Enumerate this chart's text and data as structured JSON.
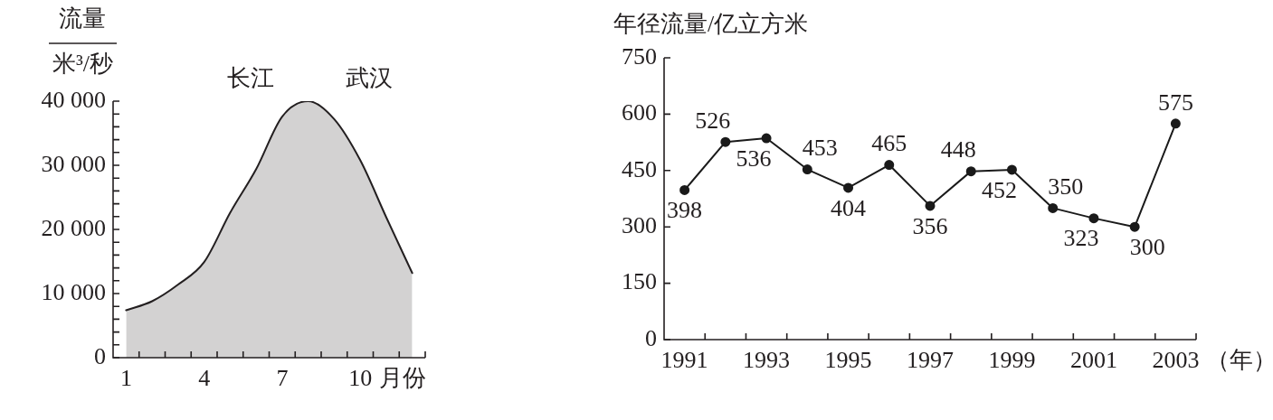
{
  "chart_data": [
    {
      "type": "area",
      "ylabel": "流量米³/秒",
      "xlabel": "月份",
      "annotations": [
        "长江",
        "武汉"
      ],
      "categories": [
        "1",
        null,
        null,
        "4",
        null,
        null,
        "7",
        null,
        null,
        "10",
        null,
        null
      ],
      "series": [
        {
          "color": "#231f20",
          "values": [
            7400,
            8800,
            11400,
            14900,
            22600,
            29400,
            37600,
            40000,
            37200,
            30800,
            21900,
            13200
          ]
        }
      ],
      "ylim": [
        0,
        40000
      ],
      "yticks": [
        0,
        {
          "value": 2000,
          "label": null
        },
        {
          "value": 4000,
          "label": null
        },
        {
          "value": 6000,
          "label": null
        },
        {
          "value": 8000,
          "label": null
        },
        {
          "value": 10000,
          "label": "10 000"
        },
        {
          "value": 12000,
          "label": null
        },
        {
          "value": 14000,
          "label": null
        },
        {
          "value": 16000,
          "label": null
        },
        {
          "value": 18000,
          "label": null
        },
        {
          "value": 20000,
          "label": "20 000"
        },
        {
          "value": 22000,
          "label": null
        },
        {
          "value": 24000,
          "label": null
        },
        {
          "value": 26000,
          "label": null
        },
        {
          "value": 28000,
          "label": null
        },
        {
          "value": 30000,
          "label": "30 000"
        },
        {
          "value": 32000,
          "label": null
        },
        {
          "value": 34000,
          "label": null
        },
        {
          "value": 36000,
          "label": null
        },
        {
          "value": 38000,
          "label": null
        },
        {
          "value": 40000,
          "label": "40 000"
        }
      ]
    },
    {
      "type": "line",
      "ylabel": "年径流量/亿立方米",
      "xlabel": "（年）",
      "categories": [
        "1991",
        null,
        "1993",
        null,
        "1995",
        null,
        "1997",
        null,
        "1999",
        null,
        "2001",
        null,
        "2003"
      ],
      "series": [
        {
          "color": "#1a1a1a",
          "values": [
            398,
            526,
            536,
            453,
            404,
            465,
            356,
            448,
            452,
            350,
            323,
            300,
            575
          ]
        }
      ],
      "ylim": [
        0,
        750
      ],
      "yticks": [
        0,
        150,
        300,
        450,
        600,
        750
      ],
      "marker": "circle",
      "data_labels": true
    }
  ]
}
